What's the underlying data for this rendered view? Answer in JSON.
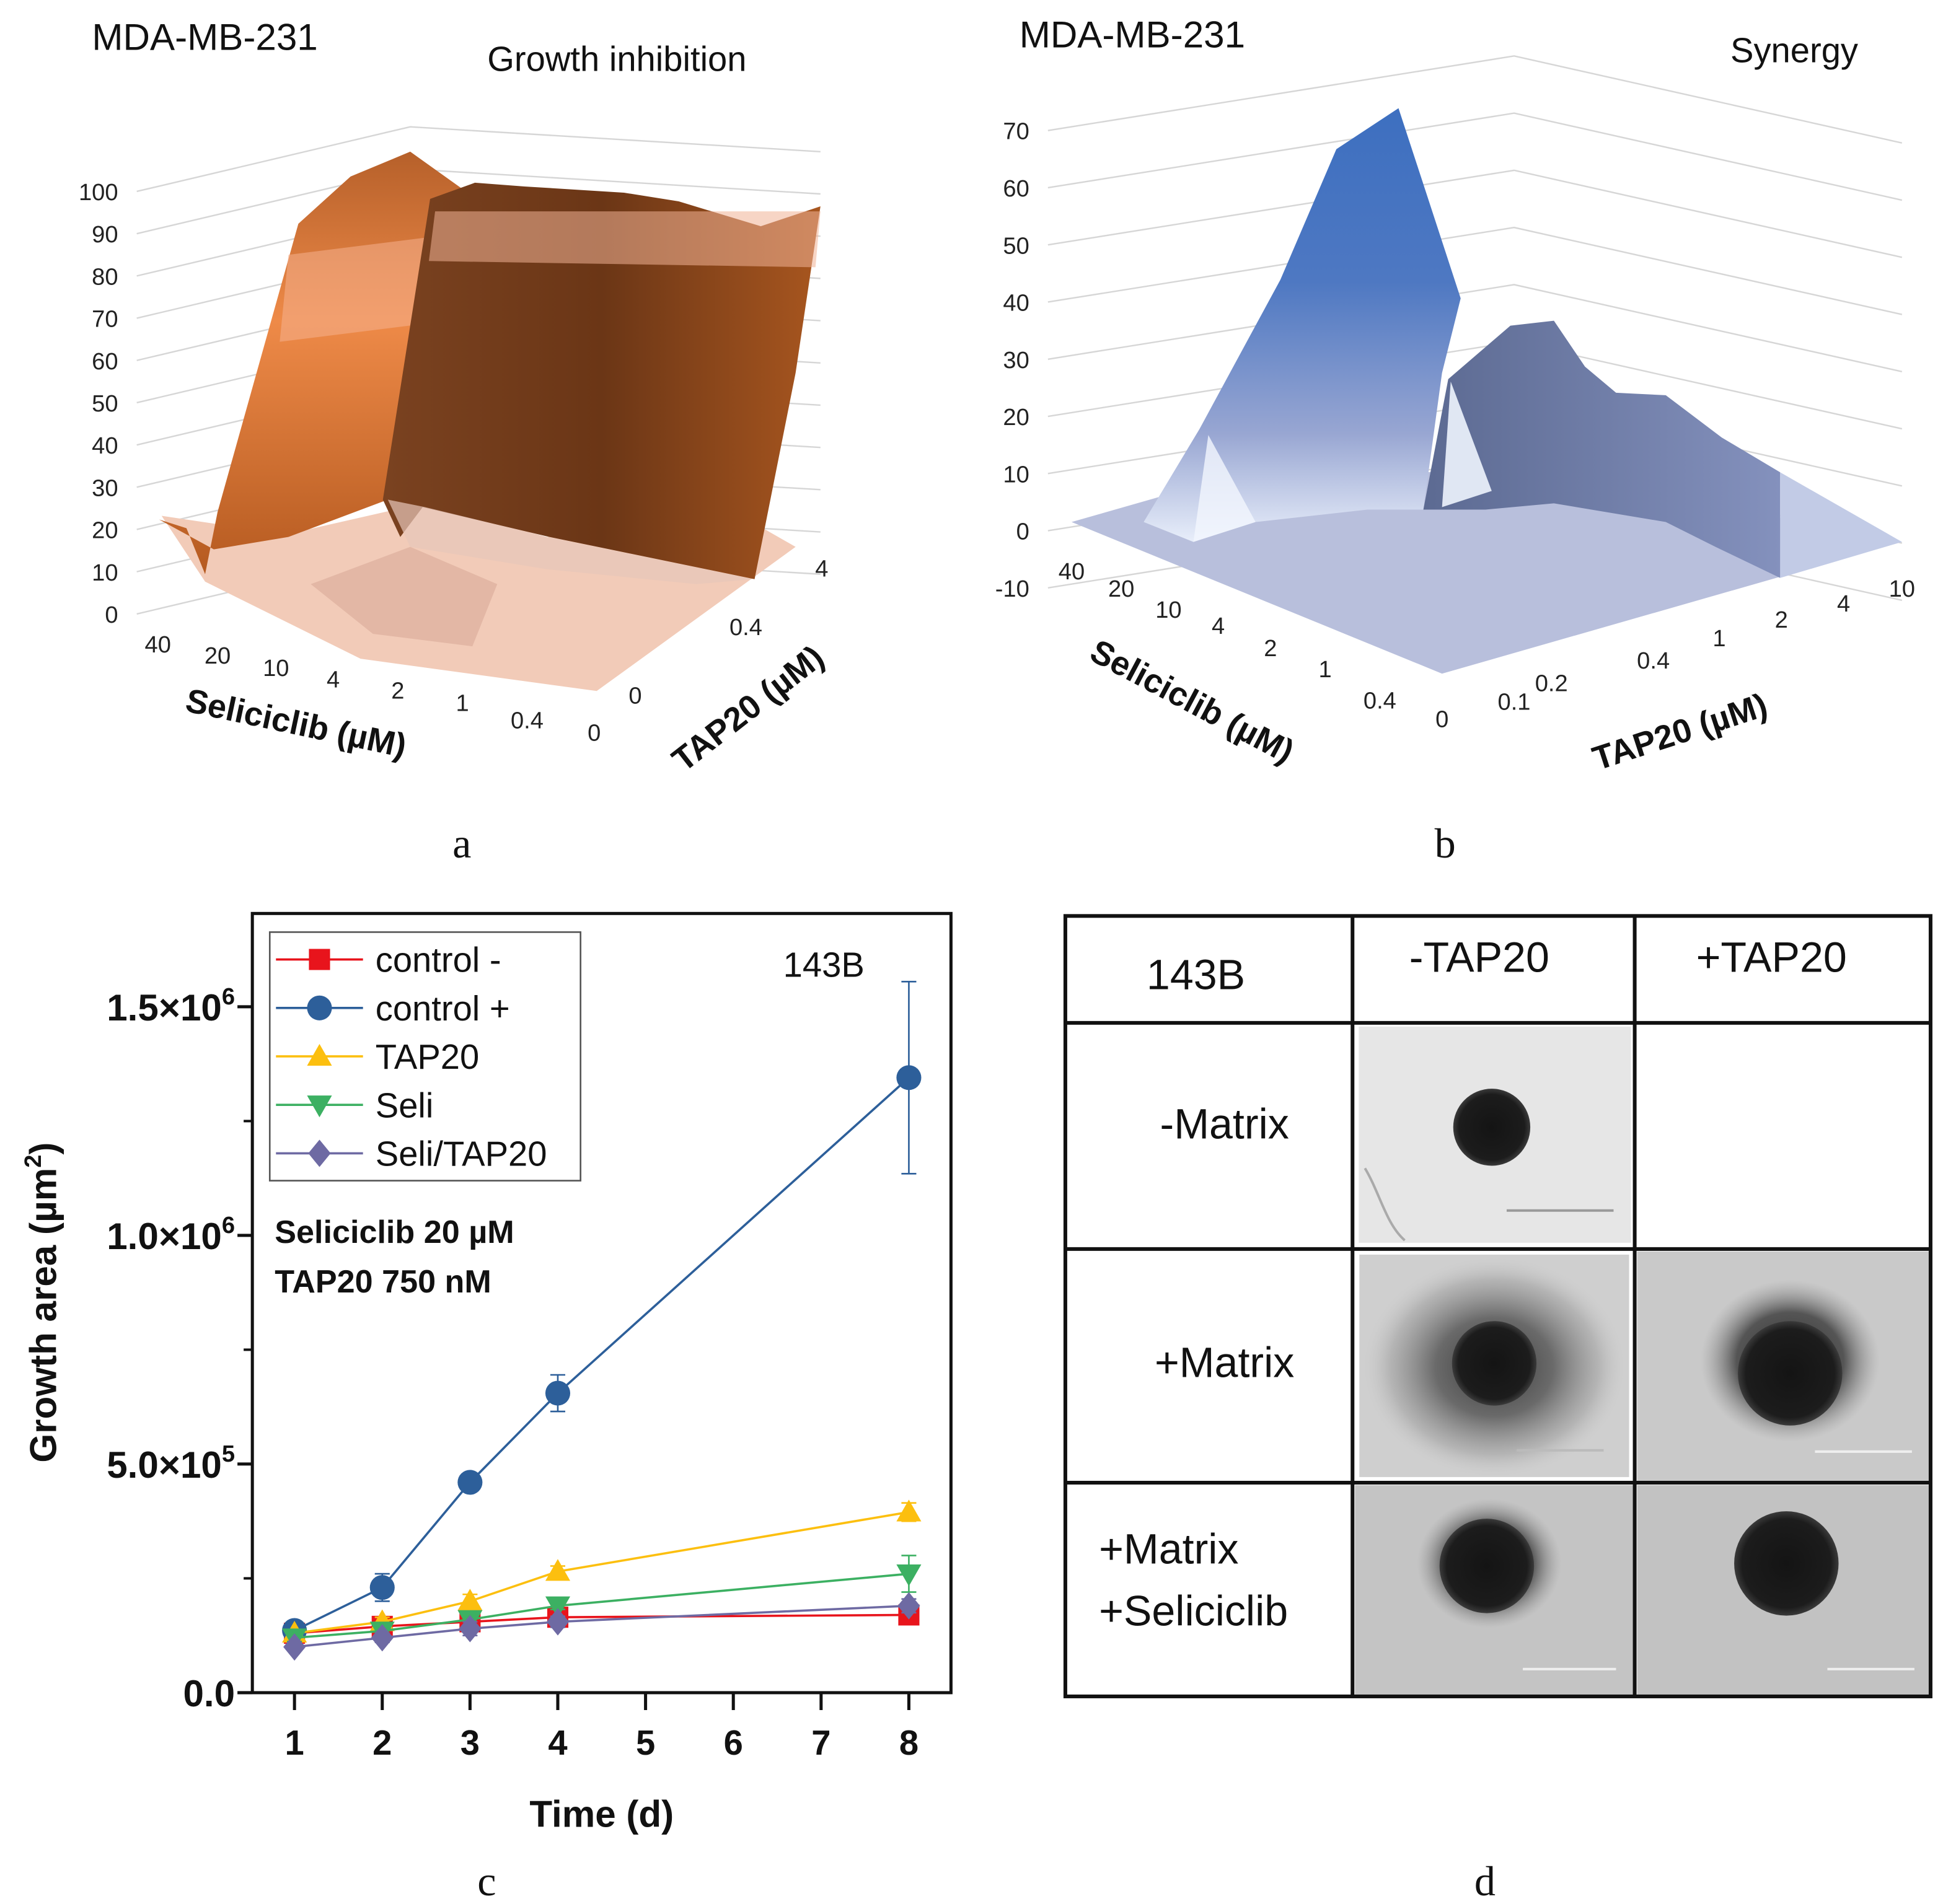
{
  "panel_labels": {
    "a": "a",
    "b": "b",
    "c": "c",
    "d": "d"
  },
  "chart_data": [
    {
      "type": "surface3d",
      "panel": "a",
      "title": "MDA-MB-231",
      "subtitle": "Growth inhibition",
      "z_ticks": [
        "100",
        "90",
        "80",
        "70",
        "60",
        "50",
        "40",
        "30",
        "20",
        "10",
        "0"
      ],
      "x_label": "Seliciclib (µM)",
      "x_ticks": [
        "40",
        "20",
        "10",
        "4",
        "2",
        "1",
        "0.4",
        "0"
      ],
      "y_label": "TAP20 (µM)",
      "y_ticks": [
        "0",
        "0.4",
        "4"
      ],
      "zlim": [
        0,
        100
      ],
      "colors": {
        "surface": "#c8662a",
        "floor": "#f3cdbb"
      }
    },
    {
      "type": "surface3d",
      "panel": "b",
      "title": "MDA-MB-231",
      "subtitle": "Synergy",
      "z_ticks": [
        "70",
        "60",
        "50",
        "40",
        "30",
        "20",
        "10",
        "0",
        "-10"
      ],
      "x_label": "Seliciclib (µM)",
      "x_ticks": [
        "40",
        "20",
        "10",
        "4",
        "2",
        "1",
        "0.4",
        "0"
      ],
      "y_label": "TAP20 (µM)",
      "y_ticks": [
        "0.1",
        "0.2",
        "0.4",
        "1",
        "2",
        "4",
        "10"
      ],
      "zlim": [
        -10,
        70
      ],
      "colors": {
        "surface": "#4a78c0",
        "floor": "#b7bedc"
      }
    },
    {
      "type": "line",
      "panel": "c",
      "title": "143B",
      "xlabel": "Time (d)",
      "ylabel": "Growth area (µm²)",
      "ylabel_main": "Growth area  (µm",
      "ylabel_sup": "2",
      "ylabel_end": ")",
      "x_ticks": [
        "1",
        "2",
        "3",
        "4",
        "5",
        "6",
        "7",
        "8"
      ],
      "xlim": [
        0.52,
        8.48
      ],
      "ylim": [
        0,
        1704000
      ],
      "y_ticks": [
        {
          "value": 0,
          "label": "0.0",
          "exp": ""
        },
        {
          "value": 500000,
          "label": "5.0×10",
          "exp": "5"
        },
        {
          "value": 1000000,
          "label": "1.0×10",
          "exp": "6"
        },
        {
          "value": 1500000,
          "label": "1.5×10",
          "exp": "6"
        }
      ],
      "annotations": [
        "Seliciclib 20  µM",
        "TAP20 750 nM"
      ],
      "x": [
        1,
        2,
        3,
        4,
        8
      ],
      "series": [
        {
          "name": "control -",
          "color": "#e8141c",
          "marker": "square",
          "values": [
            130000,
            145000,
            155000,
            165000,
            170000
          ],
          "errors": [
            5000,
            8000,
            8000,
            10000,
            10000
          ]
        },
        {
          "name": "control +",
          "color": "#2d5f9a",
          "marker": "circle",
          "values": [
            136000,
            230000,
            460000,
            655000,
            1345000
          ],
          "errors": [
            8000,
            30000,
            10000,
            40000,
            210000
          ]
        },
        {
          "name": "TAP20",
          "color": "#fcbf0f",
          "marker": "triangle-up",
          "values": [
            130000,
            155000,
            200000,
            265000,
            395000
          ],
          "errors": [
            8000,
            10000,
            15000,
            12000,
            20000
          ]
        },
        {
          "name": "Seli",
          "color": "#3cb062",
          "marker": "triangle-down",
          "values": [
            120000,
            135000,
            160000,
            190000,
            260000
          ],
          "errors": [
            8000,
            10000,
            15000,
            8000,
            40000
          ]
        },
        {
          "name": "Seli/TAP20",
          "color": "#6e6aa3",
          "marker": "diamond",
          "values": [
            100000,
            120000,
            140000,
            155000,
            190000
          ],
          "errors": [
            8000,
            10000,
            15000,
            12000,
            15000
          ]
        }
      ]
    }
  ],
  "table_d": {
    "corner": "143B",
    "col_headers": [
      "-TAP20",
      "+TAP20"
    ],
    "row_headers": [
      [
        "-Matrix"
      ],
      [
        "+Matrix"
      ],
      [
        "+Matrix",
        "+Seliciclib"
      ]
    ]
  }
}
